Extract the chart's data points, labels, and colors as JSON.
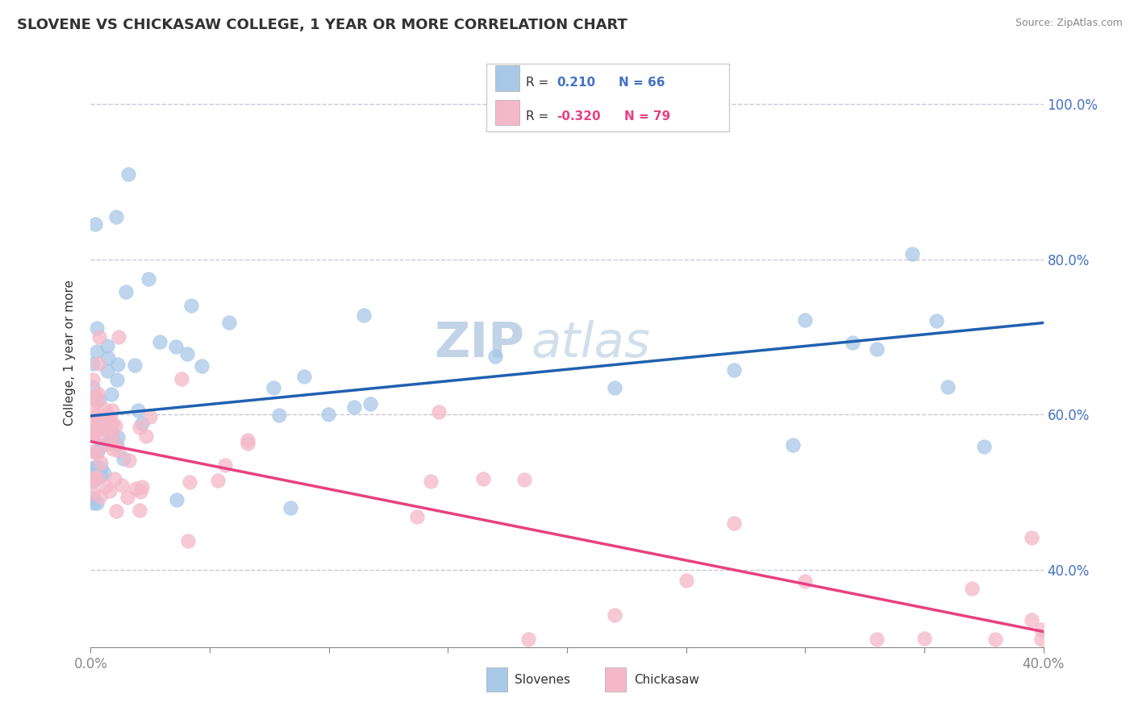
{
  "title": "SLOVENE VS CHICKASAW COLLEGE, 1 YEAR OR MORE CORRELATION CHART",
  "source": "Source: ZipAtlas.com",
  "ylabel": "College, 1 year or more",
  "y_ticks": [
    0.4,
    0.6,
    0.8,
    1.0
  ],
  "y_tick_labels": [
    "40.0%",
    "60.0%",
    "80.0%",
    "100.0%"
  ],
  "x_min": 0.0,
  "x_max": 0.4,
  "y_min": 0.3,
  "y_max": 1.06,
  "slovene_R": 0.21,
  "slovene_N": 66,
  "chickasaw_R": -0.32,
  "chickasaw_N": 79,
  "slovene_color": "#a8c8e8",
  "chickasaw_color": "#f4b8c8",
  "slovene_line_color": "#2060b0",
  "chickasaw_line_color": "#e84080",
  "slov_line_y0": 0.598,
  "slov_line_y1": 0.718,
  "chick_line_y0": 0.565,
  "chick_line_y1": 0.32,
  "watermark_zip": "ZIP",
  "watermark_atlas": "atlas",
  "background_color": "#ffffff",
  "grid_color": "#c8c8d8",
  "legend_R1": "R = ",
  "legend_V1": "0.210",
  "legend_N1": "N = 66",
  "legend_R2": "R = ",
  "legend_V2": "-0.320",
  "legend_N2": "N = 79",
  "legend_color_blue": "#4472c4",
  "legend_color_pink": "#e84080"
}
